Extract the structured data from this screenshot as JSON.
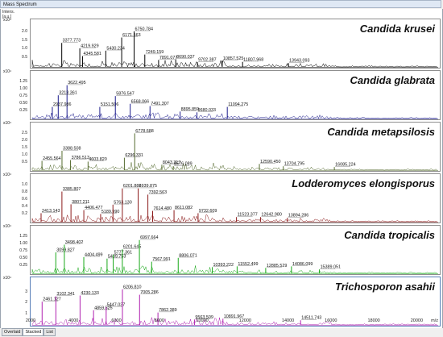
{
  "window": {
    "title": "Mass Spectrum"
  },
  "yaxis": {
    "label_top": "Intens.",
    "label_unit": "[a.u.]"
  },
  "xaxis": {
    "label": "m/z",
    "ticks": [
      "2000",
      "4000",
      "6000",
      "8000",
      "10000",
      "12000",
      "14000",
      "16000",
      "18000",
      "20000"
    ]
  },
  "tabs": [
    "Overlaid",
    "Stacked",
    "List"
  ],
  "spectra": [
    {
      "name": "Candida krusei",
      "color": "#000000",
      "scale": "x10⁴",
      "yticks": [
        "2.0",
        "1.5",
        "1.0",
        "0.5"
      ],
      "peaks": [
        [
          "3377.773",
          3377,
          0.62
        ],
        [
          "4219.929",
          4219,
          0.48
        ],
        [
          "4345.581",
          4345,
          0.28
        ],
        [
          "5430.234",
          5430,
          0.42
        ],
        [
          "6171.563",
          6171,
          0.76
        ],
        [
          "6750.784",
          6750,
          0.92
        ],
        [
          "7249.159",
          7249,
          0.32
        ],
        [
          "7891.077",
          7891,
          0.18
        ],
        [
          "8690.037",
          8690,
          0.2
        ],
        [
          "9702.387",
          9702,
          0.12
        ],
        [
          "10857.525",
          10857,
          0.16
        ],
        [
          "11807.968",
          11807,
          0.13
        ],
        [
          "13943.093",
          13943,
          0.1
        ]
      ]
    },
    {
      "name": "Candida glabrata",
      "color": "#1a1a8c",
      "scale": "x10⁴",
      "yticks": [
        "1.25",
        "1.00",
        "0.75",
        "0.50",
        "0.25"
      ],
      "peaks": [
        [
          "3622.495",
          3622,
          0.86
        ],
        [
          "3213.361",
          3213,
          0.6
        ],
        [
          "2937.986",
          2937,
          0.3
        ],
        [
          "5151.506",
          5151,
          0.3
        ],
        [
          "5876.547",
          5876,
          0.58
        ],
        [
          "6568.066",
          6568,
          0.38
        ],
        [
          "7491.307",
          7491,
          0.32
        ],
        [
          "8895.859",
          8895,
          0.18
        ],
        [
          "9680.033",
          9680,
          0.16
        ],
        [
          "11094.275",
          11094,
          0.3
        ]
      ]
    },
    {
      "name": "Candida metapsilosis",
      "color": "#556b2f",
      "scale": "x10⁴",
      "yticks": [
        "2.5",
        "2.0",
        "1.5",
        "1.0",
        "0.5"
      ],
      "peaks": [
        [
          "6778.688",
          6778,
          0.95
        ],
        [
          "3388.508",
          3388,
          0.5
        ],
        [
          "2455.564",
          2455,
          0.24
        ],
        [
          "3786.513",
          3786,
          0.26
        ],
        [
          "4603.820",
          4603,
          0.22
        ],
        [
          "6296.331",
          6296,
          0.32
        ],
        [
          "8043.317",
          8043,
          0.14
        ],
        [
          "8576.089",
          8576,
          0.1
        ],
        [
          "12590.450",
          12590,
          0.16
        ],
        [
          "13704.795",
          13704,
          0.1
        ],
        [
          "16085.224",
          16085,
          0.08
        ]
      ]
    },
    {
      "name": "Lodderomyces elongisporus",
      "color": "#8b1a1a",
      "scale": "x10⁴",
      "yticks": [
        "1.0",
        "0.8",
        "0.6",
        "0.4",
        "0.2"
      ],
      "peaks": [
        [
          "2413.143",
          2413,
          0.22
        ],
        [
          "3385.807",
          3385,
          0.78
        ],
        [
          "3807.211",
          3807,
          0.45
        ],
        [
          "4406.477",
          4406,
          0.3
        ],
        [
          "5189.990",
          5189,
          0.2
        ],
        [
          "5763.130",
          5763,
          0.44
        ],
        [
          "6201.882",
          6201,
          0.86
        ],
        [
          "6939.875",
          6939,
          0.86
        ],
        [
          "7392.563",
          7392,
          0.7
        ],
        [
          "7614.480",
          7614,
          0.28
        ],
        [
          "8611.082",
          8611,
          0.3
        ],
        [
          "9732.609",
          9732,
          0.22
        ],
        [
          "11523.377",
          11523,
          0.12
        ],
        [
          "12642.980",
          12642,
          0.12
        ],
        [
          "13894.286",
          13894,
          0.1
        ]
      ]
    },
    {
      "name": "Candida tropicalis",
      "color": "#18a818",
      "scale": "x10⁴",
      "yticks": [
        "1.25",
        "1.00",
        "0.75",
        "0.50",
        "0.25"
      ],
      "peaks": [
        [
          "3099.827",
          3099,
          0.54
        ],
        [
          "3498.402",
          3498,
          0.74
        ],
        [
          "4404.499",
          4404,
          0.42
        ],
        [
          "5489.753",
          5489,
          0.38
        ],
        [
          "5777.361",
          5777,
          0.48
        ],
        [
          "6201.645",
          6201,
          0.62
        ],
        [
          "6997.664",
          6997,
          0.86
        ],
        [
          "7567.991",
          7567,
          0.3
        ],
        [
          "8806.071",
          8806,
          0.4
        ],
        [
          "10393.222",
          10393,
          0.16
        ],
        [
          "11552.499",
          11552,
          0.18
        ],
        [
          "12885.529",
          12885,
          0.14
        ],
        [
          "14086.099",
          14086,
          0.18
        ],
        [
          "15389.051",
          15389,
          0.1
        ]
      ]
    },
    {
      "name": "Trichosporon asahii",
      "color": "#b020b0",
      "scale": "x10⁴",
      "yticks": [
        "3",
        "2",
        "1"
      ],
      "peaks": [
        [
          "2461.127",
          2461,
          0.6
        ],
        [
          "3102.341",
          3102,
          0.74
        ],
        [
          "4230.133",
          4230,
          0.76
        ],
        [
          "4859.525",
          4859,
          0.38
        ],
        [
          "5447.037",
          5447,
          0.46
        ],
        [
          "6206.810",
          6206,
          0.92
        ],
        [
          "7005.286",
          7005,
          0.78
        ],
        [
          "7862.389",
          7862,
          0.32
        ],
        [
          "9563.509",
          9563,
          0.14
        ],
        [
          "10891.967",
          10891,
          0.16
        ],
        [
          "14511.743",
          14511,
          0.12
        ]
      ]
    }
  ]
}
